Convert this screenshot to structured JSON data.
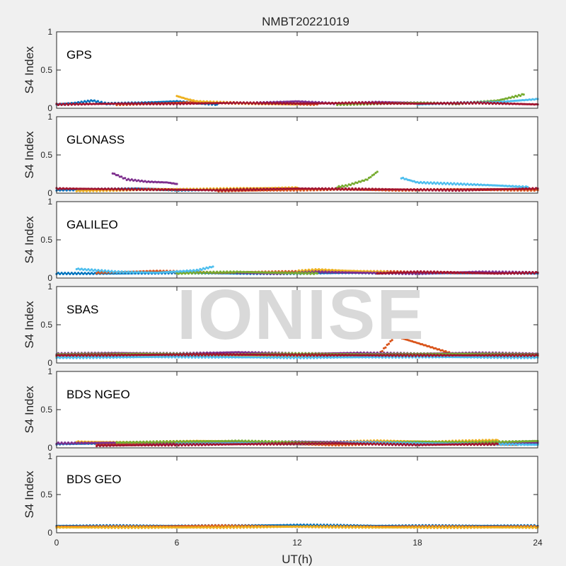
{
  "chart_data": {
    "type": "scatter",
    "title": "NMBT20221019",
    "xlabel": "UT(h)",
    "ylabel": "S4 Index",
    "xlim": [
      0,
      24
    ],
    "ylim": [
      0,
      1
    ],
    "xticks": [
      0,
      6,
      12,
      18,
      24
    ],
    "yticks": [
      0,
      0.5,
      1
    ],
    "grid": false,
    "watermark": "IONISE",
    "colors": [
      "#0072BD",
      "#D95319",
      "#EDB120",
      "#7E2F8E",
      "#77AC30",
      "#4DBEEE",
      "#A2142F"
    ],
    "panels": [
      {
        "label": "GPS",
        "series": [
          {
            "x": [
              0,
              1,
              1.8,
              2.5,
              4,
              6,
              8
            ],
            "y": [
              0.05,
              0.07,
              0.1,
              0.06,
              0.07,
              0.09,
              0.05
            ]
          },
          {
            "x": [
              3,
              5,
              7,
              9,
              11,
              13
            ],
            "y": [
              0.05,
              0.06,
              0.08,
              0.07,
              0.06,
              0.05
            ]
          },
          {
            "x": [
              6,
              6.5,
              7,
              8.5,
              10,
              12
            ],
            "y": [
              0.16,
              0.12,
              0.09,
              0.07,
              0.06,
              0.05
            ]
          },
          {
            "x": [
              10,
              12,
              14,
              16,
              18,
              20
            ],
            "y": [
              0.07,
              0.09,
              0.06,
              0.08,
              0.07,
              0.06
            ]
          },
          {
            "x": [
              14,
              16,
              18,
              20,
              22,
              23.3
            ],
            "y": [
              0.05,
              0.06,
              0.07,
              0.06,
              0.1,
              0.18
            ]
          },
          {
            "x": [
              18,
              20,
              22,
              24
            ],
            "y": [
              0.05,
              0.07,
              0.08,
              0.12
            ]
          },
          {
            "x": [
              0,
              3,
              6,
              9,
              12,
              15,
              18,
              21,
              24
            ],
            "y": [
              0.05,
              0.06,
              0.06,
              0.07,
              0.06,
              0.07,
              0.06,
              0.07,
              0.05
            ]
          }
        ]
      },
      {
        "label": "GLONASS",
        "series": [
          {
            "x": [
              0,
              2,
              4,
              6,
              8
            ],
            "y": [
              0.04,
              0.05,
              0.06,
              0.04,
              0.05
            ]
          },
          {
            "x": [
              8,
              11,
              14,
              17,
              20,
              24
            ],
            "y": [
              0.03,
              0.04,
              0.05,
              0.04,
              0.05,
              0.04
            ]
          },
          {
            "x": [
              1,
              3,
              5,
              7,
              9,
              12
            ],
            "y": [
              0.03,
              0.04,
              0.05,
              0.05,
              0.06,
              0.07
            ]
          },
          {
            "x": [
              2.8,
              3.5,
              4.5,
              5.5,
              6
            ],
            "y": [
              0.26,
              0.18,
              0.15,
              0.14,
              0.12
            ]
          },
          {
            "x": [
              14,
              14.5,
              15,
              15.5,
              16
            ],
            "y": [
              0.08,
              0.1,
              0.14,
              0.18,
              0.28
            ]
          },
          {
            "x": [
              17.2,
              18,
              20,
              22,
              23.5
            ],
            "y": [
              0.2,
              0.14,
              0.12,
              0.1,
              0.08
            ]
          },
          {
            "x": [
              0,
              4,
              8,
              12,
              16,
              20,
              24
            ],
            "y": [
              0.06,
              0.05,
              0.04,
              0.06,
              0.05,
              0.04,
              0.06
            ]
          }
        ]
      },
      {
        "label": "GALILEO",
        "series": [
          {
            "x": [
              0,
              3,
              6,
              9,
              12,
              15,
              18,
              21,
              24
            ],
            "y": [
              0.06,
              0.06,
              0.07,
              0.06,
              0.06,
              0.07,
              0.06,
              0.07,
              0.06
            ]
          },
          {
            "x": [
              2,
              5,
              8,
              11,
              14,
              17,
              20
            ],
            "y": [
              0.07,
              0.09,
              0.07,
              0.08,
              0.09,
              0.08,
              0.07
            ]
          },
          {
            "x": [
              12,
              13,
              14,
              15,
              16.5
            ],
            "y": [
              0.09,
              0.11,
              0.1,
              0.09,
              0.08
            ]
          },
          {
            "x": [
              9,
              11,
              13,
              15,
              18,
              21,
              24
            ],
            "y": [
              0.07,
              0.06,
              0.08,
              0.07,
              0.06,
              0.08,
              0.07
            ]
          },
          {
            "x": [
              6,
              7,
              9,
              11,
              13
            ],
            "y": [
              0.06,
              0.07,
              0.08,
              0.07,
              0.06
            ]
          },
          {
            "x": [
              1,
              3,
              5,
              7,
              7.8
            ],
            "y": [
              0.12,
              0.08,
              0.07,
              0.1,
              0.15
            ]
          },
          {
            "x": [
              16,
              18,
              20,
              22,
              24
            ],
            "y": [
              0.06,
              0.08,
              0.07,
              0.06,
              0.07
            ]
          }
        ]
      },
      {
        "label": "SBAS",
        "series": [
          {
            "x": [
              0,
              3,
              6,
              9,
              12,
              15,
              18,
              21,
              24
            ],
            "y": [
              0.1,
              0.11,
              0.12,
              0.1,
              0.11,
              0.12,
              0.11,
              0.1,
              0.11
            ]
          },
          {
            "x": [
              0,
              4,
              8,
              12,
              16,
              16.9,
              20,
              24
            ],
            "y": [
              0.09,
              0.1,
              0.09,
              0.1,
              0.09,
              0.35,
              0.1,
              0.09
            ]
          },
          {
            "x": [
              0,
              6,
              12,
              18,
              24
            ],
            "y": [
              0.08,
              0.09,
              0.08,
              0.09,
              0.08
            ]
          },
          {
            "x": [
              0,
              3,
              6,
              9,
              12,
              15,
              18,
              21,
              24
            ],
            "y": [
              0.12,
              0.13,
              0.12,
              0.14,
              0.12,
              0.13,
              0.12,
              0.13,
              0.12
            ]
          },
          {
            "x": [
              0,
              4,
              8,
              12,
              16,
              20,
              24
            ],
            "y": [
              0.11,
              0.12,
              0.11,
              0.12,
              0.11,
              0.12,
              0.11
            ]
          },
          {
            "x": [
              0,
              6,
              12,
              18,
              24
            ],
            "y": [
              0.07,
              0.08,
              0.07,
              0.08,
              0.07
            ]
          },
          {
            "x": [
              0,
              8,
              16,
              24
            ],
            "y": [
              0.1,
              0.11,
              0.1,
              0.1
            ]
          }
        ]
      },
      {
        "label": "BDS NGEO",
        "series": [
          {
            "x": [
              0,
              3,
              6,
              9,
              12,
              15,
              18,
              21,
              24
            ],
            "y": [
              0.05,
              0.06,
              0.05,
              0.06,
              0.07,
              0.06,
              0.05,
              0.06,
              0.05
            ]
          },
          {
            "x": [
              2,
              5,
              8,
              11,
              14,
              17,
              20,
              23
            ],
            "y": [
              0.04,
              0.05,
              0.06,
              0.05,
              0.04,
              0.06,
              0.05,
              0.04
            ]
          },
          {
            "x": [
              1,
              4,
              7,
              10,
              13,
              16,
              19,
              22
            ],
            "y": [
              0.08,
              0.07,
              0.09,
              0.08,
              0.07,
              0.09,
              0.08,
              0.1
            ]
          },
          {
            "x": [
              0,
              4,
              8,
              12,
              16,
              20,
              24
            ],
            "y": [
              0.06,
              0.07,
              0.06,
              0.08,
              0.07,
              0.06,
              0.07
            ]
          },
          {
            "x": [
              3,
              6,
              9,
              12,
              15,
              18,
              21,
              24
            ],
            "y": [
              0.07,
              0.08,
              0.09,
              0.07,
              0.06,
              0.08,
              0.07,
              0.09
            ]
          },
          {
            "x": [
              6,
              9,
              12,
              15,
              18,
              21,
              24
            ],
            "y": [
              0.05,
              0.06,
              0.05,
              0.07,
              0.06,
              0.05,
              0.04
            ]
          },
          {
            "x": [
              2,
              6,
              10,
              14,
              18,
              22
            ],
            "y": [
              0.03,
              0.04,
              0.05,
              0.06,
              0.04,
              0.05
            ]
          }
        ]
      },
      {
        "label": "BDS GEO",
        "series": [
          {
            "x": [
              0,
              4,
              8,
              12,
              16,
              20,
              24
            ],
            "y": [
              0.09,
              0.09,
              0.09,
              0.1,
              0.09,
              0.09,
              0.09
            ]
          },
          {
            "x": [
              0,
              4,
              8,
              12,
              16,
              20,
              24
            ],
            "y": [
              0.08,
              0.08,
              0.09,
              0.08,
              0.08,
              0.08,
              0.08
            ]
          },
          {
            "x": [
              0,
              4,
              8,
              12,
              16,
              20,
              24
            ],
            "y": [
              0.07,
              0.07,
              0.07,
              0.08,
              0.07,
              0.07,
              0.07
            ]
          }
        ]
      }
    ]
  }
}
